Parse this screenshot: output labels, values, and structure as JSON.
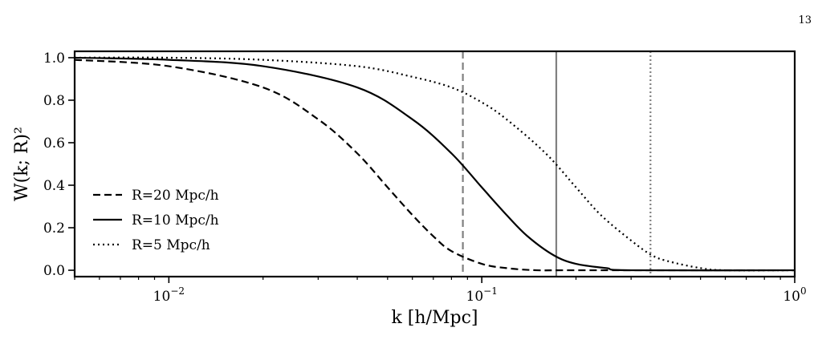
{
  "page_number": "13",
  "chart_data": {
    "type": "line",
    "title": "",
    "xlabel": "k [h/Mpc]",
    "ylabel": "W(k; R)²",
    "xscale": "log",
    "xlim": [
      0.005,
      1.0
    ],
    "ylim": [
      -0.03,
      1.03
    ],
    "x_ticks": [
      {
        "value": 0.01,
        "base": "10",
        "exp": "−2"
      },
      {
        "value": 0.1,
        "base": "10",
        "exp": "−1"
      },
      {
        "value": 1.0,
        "base": "10",
        "exp": "0"
      }
    ],
    "y_ticks": [
      {
        "value": 0.0,
        "label": "0.0"
      },
      {
        "value": 0.2,
        "label": "0.2"
      },
      {
        "value": 0.4,
        "label": "0.4"
      },
      {
        "value": 0.6,
        "label": "0.6"
      },
      {
        "value": 0.8,
        "label": "0.8"
      },
      {
        "value": 1.0,
        "label": "1.0"
      }
    ],
    "grid": false,
    "legend_position": "lower-left",
    "series": [
      {
        "name": "R=20 Mpc/h",
        "R": 20,
        "style": "dashed",
        "color": "#000000",
        "x": [
          0.005,
          0.01,
          0.02,
          0.03,
          0.04,
          0.05,
          0.06,
          0.07,
          0.08,
          0.1,
          0.12,
          0.15,
          0.2,
          1.0
        ],
        "y": [
          0.99,
          0.96,
          0.86,
          0.71,
          0.55,
          0.39,
          0.26,
          0.16,
          0.09,
          0.03,
          0.01,
          0.0,
          0.0,
          0.0
        ]
      },
      {
        "name": "R=10 Mpc/h",
        "R": 10,
        "style": "solid",
        "color": "#000000",
        "x": [
          0.005,
          0.01,
          0.02,
          0.04,
          0.06,
          0.08,
          0.1,
          0.12,
          0.14,
          0.17,
          0.2,
          0.25,
          0.3,
          1.0
        ],
        "y": [
          1.0,
          0.99,
          0.96,
          0.86,
          0.71,
          0.55,
          0.39,
          0.26,
          0.16,
          0.07,
          0.03,
          0.01,
          0.0,
          0.0
        ]
      },
      {
        "name": "R=5 Mpc/h",
        "R": 5,
        "style": "dotted",
        "color": "#000000",
        "x": [
          0.005,
          0.01,
          0.02,
          0.04,
          0.06,
          0.08,
          0.1,
          0.12,
          0.16,
          0.2,
          0.24,
          0.3,
          0.35,
          0.4,
          0.5,
          0.6,
          1.0
        ],
        "y": [
          1.0,
          1.0,
          0.99,
          0.96,
          0.91,
          0.86,
          0.79,
          0.71,
          0.55,
          0.39,
          0.26,
          0.14,
          0.07,
          0.04,
          0.01,
          0.0,
          0.0
        ]
      }
    ],
    "vertical_lines": [
      {
        "x": 0.087,
        "style": "dashed",
        "color": "#808080"
      },
      {
        "x": 0.173,
        "style": "solid",
        "color": "#808080"
      },
      {
        "x": 0.346,
        "style": "dotted",
        "color": "#808080"
      }
    ]
  }
}
